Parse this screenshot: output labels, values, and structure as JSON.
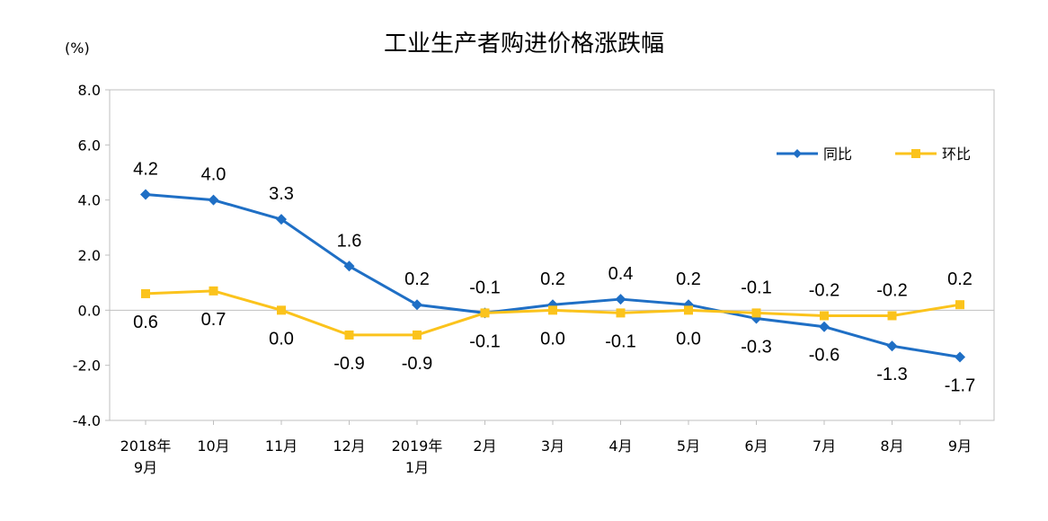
{
  "chart_data": {
    "type": "line",
    "title": "工业生产者购进价格涨跌幅",
    "unit": "(%)",
    "categories": [
      [
        "2018年",
        "9月"
      ],
      [
        "10月"
      ],
      [
        "11月"
      ],
      [
        "12月"
      ],
      [
        "2019年",
        "1月"
      ],
      [
        "2月"
      ],
      [
        "3月"
      ],
      [
        "4月"
      ],
      [
        "5月"
      ],
      [
        "6月"
      ],
      [
        "7月"
      ],
      [
        "8月"
      ],
      [
        "9月"
      ]
    ],
    "y_ticks": [
      "8.0",
      "6.0",
      "4.0",
      "2.0",
      "0.0",
      "-2.0",
      "-4.0"
    ],
    "ylim": [
      -4.0,
      8.0
    ],
    "grid": false,
    "legend_position": "top-right",
    "series": [
      {
        "name": "同比",
        "color": "#1f6fc5",
        "marker": "diamond",
        "values": [
          4.2,
          4.0,
          3.3,
          1.6,
          0.2,
          -0.1,
          0.2,
          0.4,
          0.2,
          -0.3,
          -0.6,
          -1.3,
          -1.7
        ],
        "labels": [
          "4.2",
          "4.0",
          "3.3",
          "1.6",
          "0.2",
          "-0.1",
          "0.2",
          "0.4",
          "0.2",
          "-0.3",
          "-0.6",
          "-1.3",
          "-1.7"
        ],
        "label_side": [
          "above",
          "above",
          "above",
          "above",
          "above",
          "below",
          "above",
          "above",
          "above",
          "below",
          "below",
          "below",
          "below"
        ]
      },
      {
        "name": "环比",
        "color": "#fbc31c",
        "marker": "square",
        "values": [
          0.6,
          0.7,
          0.0,
          -0.9,
          -0.9,
          -0.1,
          0.0,
          -0.1,
          0.0,
          -0.1,
          -0.2,
          -0.2,
          0.2
        ],
        "labels": [
          "0.6",
          "0.7",
          "0.0",
          "-0.9",
          "-0.9",
          "-0.1",
          "0.0",
          "-0.1",
          "0.0",
          "-0.1",
          "-0.2",
          "-0.2",
          "0.2"
        ],
        "label_side": [
          "below",
          "below",
          "below",
          "below",
          "below",
          "above",
          "below",
          "below",
          "below",
          "above",
          "above",
          "above",
          "above"
        ]
      }
    ]
  }
}
